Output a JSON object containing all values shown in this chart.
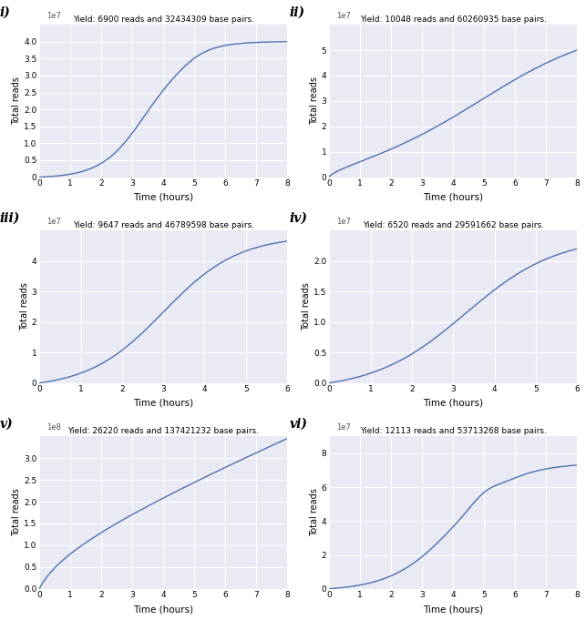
{
  "subplots": [
    {
      "label": "i)",
      "title": "Yield: 6900 reads and 32434309 base pairs.",
      "ylabel": "Total reads",
      "xlabel": "Time (hours)",
      "ylim": [
        0,
        45000000.0
      ],
      "xlim": [
        0,
        8
      ],
      "ytick_max": 40000000.0,
      "ytick_step": 5000000.0,
      "ytick_labels": [
        "0",
        "0.5",
        "1.0",
        "1.5",
        "2.0",
        "2.5",
        "3.0",
        "3.5",
        "4.0"
      ],
      "exponent": 7,
      "duration": 8,
      "shape": "sigmoid_early_plateau",
      "final_y": 40000000.0,
      "inflection": 3.5,
      "steepness": 1.4
    },
    {
      "label": "ii)",
      "title": "Yield: 10048 reads and 60260935 base pairs.",
      "ylabel": "Total reads",
      "xlabel": "Time (hours)",
      "ylim": [
        0,
        60000000.0
      ],
      "xlim": [
        0,
        8
      ],
      "ytick_max": 50000000.0,
      "ytick_step": 10000000.0,
      "ytick_labels": [
        "0",
        "1",
        "2",
        "3",
        "4",
        "5"
      ],
      "exponent": 7,
      "duration": 8,
      "shape": "log_growth",
      "final_y": 50000000.0,
      "inflection": 5.0,
      "steepness": 0.55
    },
    {
      "label": "iii)",
      "title": "Yield: 9647 reads and 46789598 base pairs.",
      "ylabel": "Total reads",
      "xlabel": "Time (hours)",
      "ylim": [
        0,
        50000000.0
      ],
      "xlim": [
        0,
        6
      ],
      "ytick_max": 40000000.0,
      "ytick_step": 10000000.0,
      "ytick_labels": [
        "0",
        "1",
        "2",
        "3",
        "4"
      ],
      "exponent": 7,
      "duration": 6,
      "shape": "sigmoid_mid",
      "final_y": 46500000.0,
      "inflection": 3.0,
      "steepness": 1.1
    },
    {
      "label": "iv)",
      "title": "Yield: 6520 reads and 29591662 base pairs.",
      "ylabel": "Total reads",
      "xlabel": "Time (hours)",
      "ylim": [
        0,
        25000000.0
      ],
      "xlim": [
        0,
        6
      ],
      "ytick_max": 20000000.0,
      "ytick_step": 5000000.0,
      "ytick_labels": [
        "0.0",
        "0.5",
        "1.0",
        "1.5",
        "2.0"
      ],
      "exponent": 7,
      "duration": 6,
      "shape": "sigmoid_mid",
      "final_y": 22000000.0,
      "inflection": 3.3,
      "steepness": 0.9
    },
    {
      "label": "v)",
      "title": "Yield: 26220 reads and 137421232 base pairs.",
      "ylabel": "Total reads",
      "xlabel": "Time (hours)",
      "ylim": [
        0,
        350000000.0
      ],
      "xlim": [
        0,
        8
      ],
      "ytick_max": 300000000.0,
      "ytick_step": 50000000.0,
      "ytick_labels": [
        "0.0",
        "0.5",
        "1.0",
        "1.5",
        "2.0",
        "2.5",
        "3.0"
      ],
      "exponent": 8,
      "duration": 8,
      "shape": "log_linear",
      "final_y": 345000000.0,
      "inflection": 2.0,
      "steepness": 0.9
    },
    {
      "label": "vi)",
      "title": "Yield: 12113 reads and 53713268 base pairs.",
      "ylabel": "Total reads",
      "xlabel": "Time (hours)",
      "ylim": [
        0,
        90000000.0
      ],
      "xlim": [
        0,
        8
      ],
      "ytick_max": 80000000.0,
      "ytick_step": 20000000.0,
      "ytick_labels": [
        "0",
        "2",
        "4",
        "6",
        "8"
      ],
      "exponent": 7,
      "duration": 8,
      "shape": "sigmoid_step",
      "final_y": 73000000.0,
      "inflection": 4.0,
      "steepness": 1.0
    }
  ],
  "line_color": "#4c72b0",
  "bg_color": "#eaeaf4",
  "grid_color": "#ffffff",
  "fig_bg": "#ffffff"
}
